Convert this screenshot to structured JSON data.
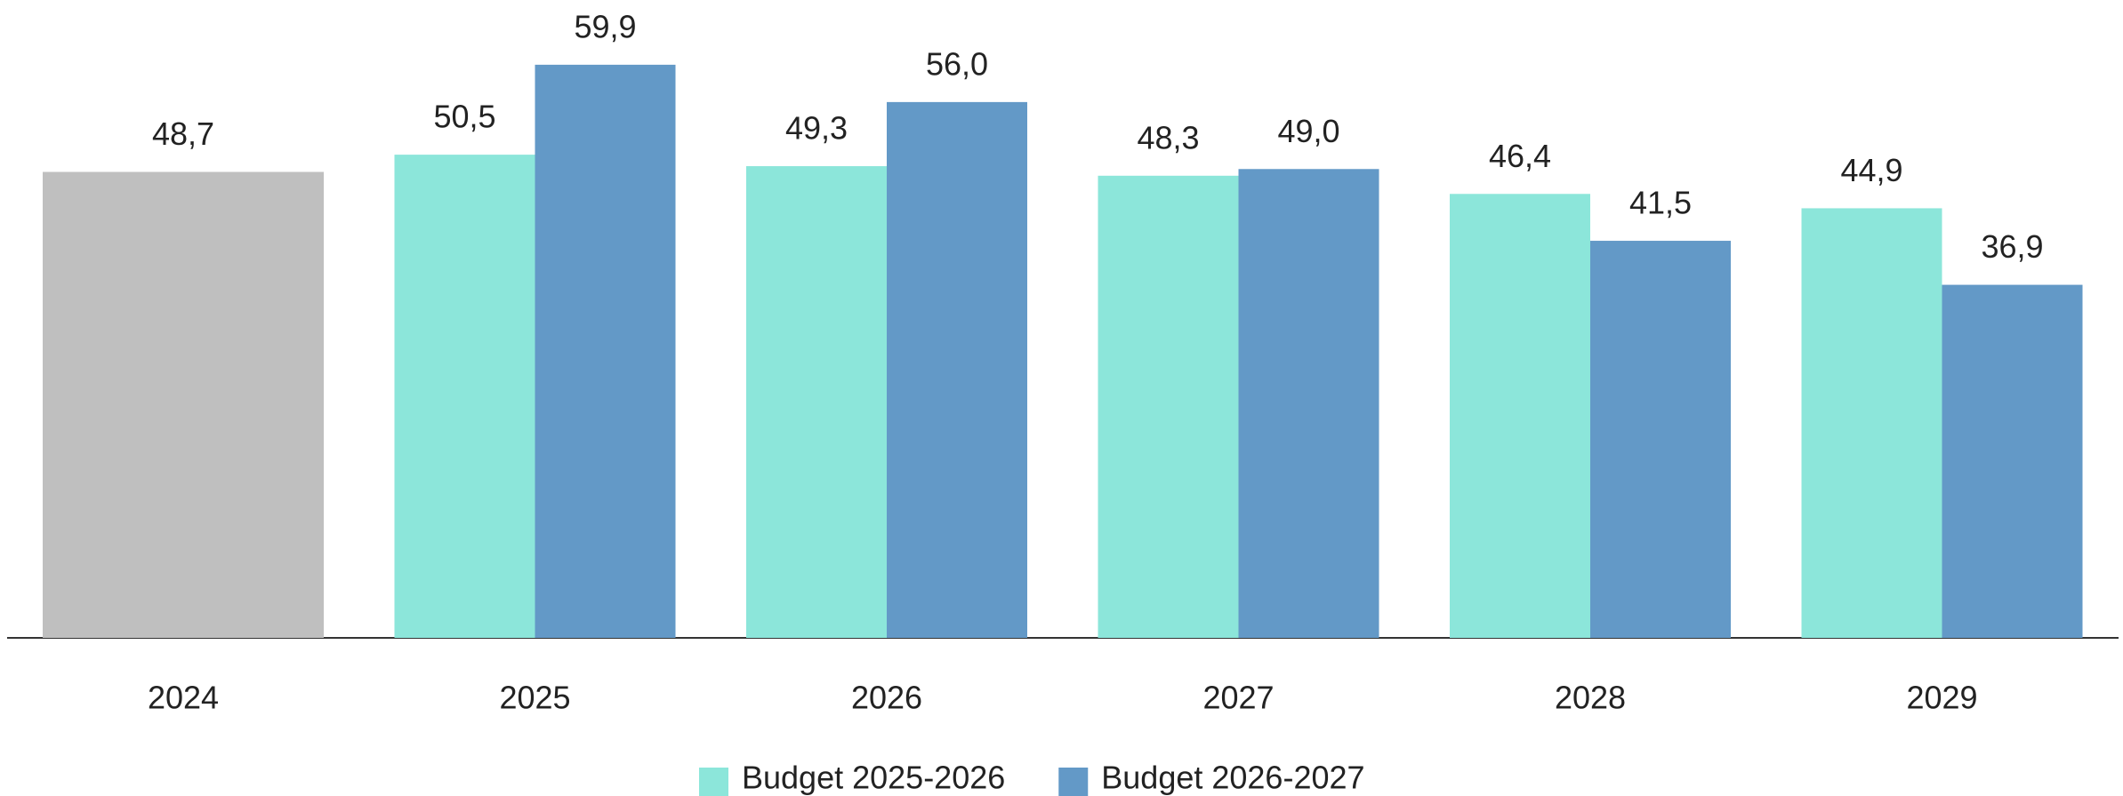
{
  "chart_data": {
    "type": "bar",
    "categories": [
      "2024",
      "2025",
      "2026",
      "2027",
      "2028",
      "2029"
    ],
    "series": [
      {
        "color": "#bfbfbf",
        "values": [
          48.7,
          null,
          null,
          null,
          null,
          null
        ],
        "value_labels": [
          "48,7",
          null,
          null,
          null,
          null,
          null
        ]
      },
      {
        "name": "Budget 2025-2026",
        "color": "#8ce6da",
        "values": [
          null,
          50.5,
          49.3,
          48.3,
          46.4,
          44.9
        ],
        "value_labels": [
          null,
          "50,5",
          "49,3",
          "48,3",
          "46,4",
          "44,9"
        ]
      },
      {
        "name": "Budget 2026-2027",
        "color": "#6399c7",
        "values": [
          null,
          59.9,
          56.0,
          49.0,
          41.5,
          36.9
        ],
        "value_labels": [
          null,
          "59,9",
          "56,0",
          "49,0",
          "41,5",
          "36,9"
        ]
      }
    ],
    "legend": "bottom"
  }
}
